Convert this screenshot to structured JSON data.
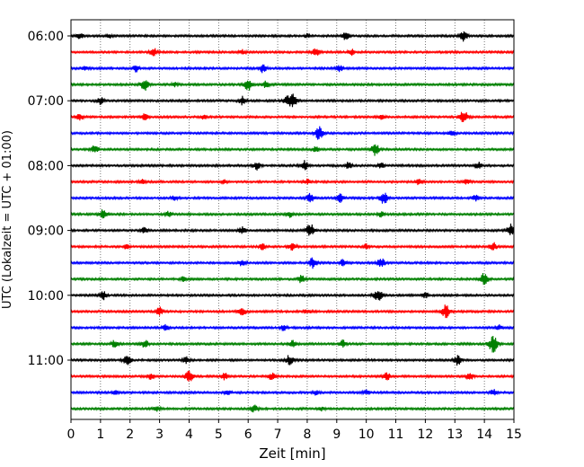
{
  "chart_data": {
    "type": "line",
    "title": "",
    "xlabel": "Zeit  [min]",
    "ylabel": "UTC (Lokalzeit = UTC + 01:00)",
    "xlim": [
      0,
      15
    ],
    "x_ticks": [
      "0",
      "1",
      "2",
      "3",
      "4",
      "5",
      "6",
      "7",
      "8",
      "9",
      "10",
      "11",
      "12",
      "13",
      "14",
      "15"
    ],
    "y_ticks": [
      "06:00",
      "07:00",
      "08:00",
      "09:00",
      "10:00",
      "11:00"
    ],
    "grid": "vertical dotted",
    "colors": [
      "#000000",
      "#ff0000",
      "#0000ff",
      "#008000"
    ],
    "traces_per_hour": 4,
    "trace_interval_min": 15,
    "series": [
      {
        "start": "06:00",
        "color": "#000000",
        "events": [
          [
            0.3,
            0.35
          ],
          [
            1.3,
            0.3
          ],
          [
            8.0,
            0.25
          ],
          [
            9.3,
            0.45
          ],
          [
            13.3,
            0.6
          ]
        ]
      },
      {
        "start": "06:15",
        "color": "#ff0000",
        "events": [
          [
            2.8,
            0.5
          ],
          [
            5.8,
            0.3
          ],
          [
            8.3,
            0.5
          ],
          [
            9.5,
            0.35
          ]
        ]
      },
      {
        "start": "06:30",
        "color": "#0000ff",
        "events": [
          [
            0.5,
            0.3
          ],
          [
            2.2,
            0.4
          ],
          [
            6.5,
            0.5
          ],
          [
            9.1,
            0.4
          ]
        ]
      },
      {
        "start": "06:45",
        "color": "#008000",
        "events": [
          [
            2.5,
            0.7
          ],
          [
            3.5,
            0.3
          ],
          [
            6.0,
            0.7
          ],
          [
            6.6,
            0.4
          ]
        ]
      },
      {
        "start": "07:00",
        "color": "#000000",
        "events": [
          [
            1.0,
            0.5
          ],
          [
            5.8,
            0.5
          ],
          [
            7.5,
            0.9
          ],
          [
            7.3,
            0.4
          ]
        ]
      },
      {
        "start": "07:15",
        "color": "#ff0000",
        "events": [
          [
            0.3,
            0.4
          ],
          [
            2.5,
            0.4
          ],
          [
            4.5,
            0.25
          ],
          [
            10.5,
            0.3
          ],
          [
            13.3,
            0.8
          ]
        ]
      },
      {
        "start": "07:30",
        "color": "#0000ff",
        "events": [
          [
            8.4,
            0.8
          ],
          [
            12.9,
            0.4
          ]
        ]
      },
      {
        "start": "07:45",
        "color": "#008000",
        "events": [
          [
            0.8,
            0.5
          ],
          [
            8.3,
            0.4
          ],
          [
            10.3,
            0.7
          ]
        ]
      },
      {
        "start": "08:00",
        "color": "#000000",
        "events": [
          [
            6.3,
            0.5
          ],
          [
            7.9,
            0.6
          ],
          [
            9.4,
            0.4
          ],
          [
            10.5,
            0.35
          ],
          [
            13.8,
            0.4
          ]
        ]
      },
      {
        "start": "08:15",
        "color": "#ff0000",
        "events": [
          [
            2.4,
            0.3
          ],
          [
            5.2,
            0.3
          ],
          [
            8.0,
            0.3
          ],
          [
            11.8,
            0.4
          ],
          [
            13.4,
            0.3
          ]
        ]
      },
      {
        "start": "08:30",
        "color": "#0000ff",
        "events": [
          [
            3.5,
            0.3
          ],
          [
            8.1,
            0.6
          ],
          [
            9.1,
            0.5
          ],
          [
            10.6,
            0.7
          ],
          [
            13.7,
            0.35
          ]
        ]
      },
      {
        "start": "08:45",
        "color": "#008000",
        "events": [
          [
            1.1,
            0.6
          ],
          [
            3.3,
            0.35
          ],
          [
            7.4,
            0.35
          ],
          [
            10.5,
            0.35
          ]
        ]
      },
      {
        "start": "09:00",
        "color": "#000000",
        "events": [
          [
            2.5,
            0.4
          ],
          [
            5.8,
            0.45
          ],
          [
            8.1,
            0.8
          ],
          [
            14.9,
            0.8
          ]
        ]
      },
      {
        "start": "09:15",
        "color": "#ff0000",
        "events": [
          [
            1.9,
            0.3
          ],
          [
            6.5,
            0.4
          ],
          [
            7.5,
            0.5
          ],
          [
            10.0,
            0.3
          ],
          [
            14.3,
            0.5
          ]
        ]
      },
      {
        "start": "09:30",
        "color": "#0000ff",
        "events": [
          [
            5.8,
            0.4
          ],
          [
            8.2,
            0.7
          ],
          [
            9.2,
            0.4
          ],
          [
            10.5,
            0.6
          ]
        ]
      },
      {
        "start": "09:45",
        "color": "#008000",
        "events": [
          [
            3.8,
            0.3
          ],
          [
            7.8,
            0.45
          ],
          [
            14.0,
            0.8
          ]
        ]
      },
      {
        "start": "10:00",
        "color": "#000000",
        "events": [
          [
            1.1,
            0.5
          ],
          [
            10.4,
            0.8
          ],
          [
            12.0,
            0.3
          ]
        ]
      },
      {
        "start": "10:15",
        "color": "#ff0000",
        "events": [
          [
            3.0,
            0.5
          ],
          [
            5.8,
            0.55
          ],
          [
            8.0,
            0.3
          ],
          [
            12.7,
            0.8
          ]
        ]
      },
      {
        "start": "10:30",
        "color": "#0000ff",
        "events": [
          [
            3.2,
            0.35
          ],
          [
            7.2,
            0.35
          ],
          [
            14.5,
            0.3
          ]
        ]
      },
      {
        "start": "10:45",
        "color": "#008000",
        "events": [
          [
            1.5,
            0.5
          ],
          [
            2.5,
            0.5
          ],
          [
            7.5,
            0.5
          ],
          [
            9.2,
            0.5
          ],
          [
            14.3,
            1.0
          ]
        ]
      },
      {
        "start": "11:00",
        "color": "#000000",
        "events": [
          [
            1.9,
            0.7
          ],
          [
            3.9,
            0.4
          ],
          [
            7.4,
            0.6
          ],
          [
            13.1,
            0.6
          ]
        ]
      },
      {
        "start": "11:15",
        "color": "#ff0000",
        "events": [
          [
            2.7,
            0.4
          ],
          [
            4.0,
            0.7
          ],
          [
            5.2,
            0.4
          ],
          [
            6.8,
            0.45
          ],
          [
            10.7,
            0.45
          ],
          [
            13.5,
            0.5
          ]
        ]
      },
      {
        "start": "11:30",
        "color": "#0000ff",
        "events": [
          [
            1.5,
            0.25
          ],
          [
            5.3,
            0.4
          ],
          [
            8.3,
            0.3
          ],
          [
            10.0,
            0.3
          ],
          [
            14.3,
            0.4
          ]
        ]
      },
      {
        "start": "11:45",
        "color": "#008000",
        "events": [
          [
            2.9,
            0.35
          ],
          [
            6.2,
            0.45
          ],
          [
            8.5,
            0.25
          ]
        ]
      }
    ]
  }
}
